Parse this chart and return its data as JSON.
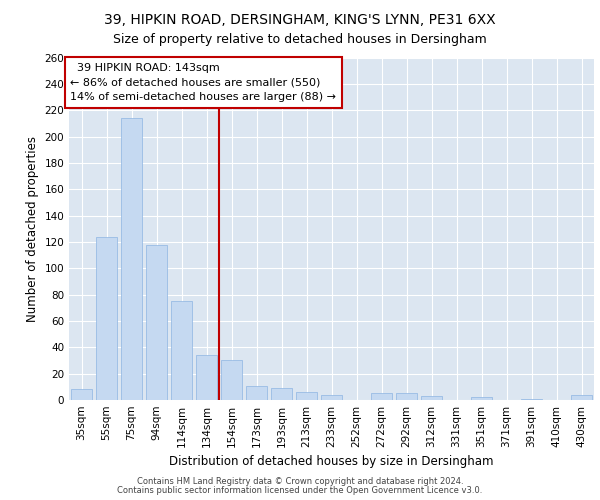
{
  "title_line1": "39, HIPKIN ROAD, DERSINGHAM, KING'S LYNN, PE31 6XX",
  "title_line2": "Size of property relative to detached houses in Dersingham",
  "xlabel": "Distribution of detached houses by size in Dersingham",
  "ylabel": "Number of detached properties",
  "footer_line1": "Contains HM Land Registry data © Crown copyright and database right 2024.",
  "footer_line2": "Contains public sector information licensed under the Open Government Licence v3.0.",
  "categories": [
    "35sqm",
    "55sqm",
    "75sqm",
    "94sqm",
    "114sqm",
    "134sqm",
    "154sqm",
    "173sqm",
    "193sqm",
    "213sqm",
    "233sqm",
    "252sqm",
    "272sqm",
    "292sqm",
    "312sqm",
    "331sqm",
    "351sqm",
    "371sqm",
    "391sqm",
    "410sqm",
    "430sqm"
  ],
  "values": [
    8,
    124,
    214,
    118,
    75,
    34,
    30,
    11,
    9,
    6,
    4,
    0,
    5,
    5,
    3,
    0,
    2,
    0,
    1,
    0,
    4
  ],
  "bar_color": "#c5d9f1",
  "bar_edge_color": "#8db4e2",
  "highlight_line_color": "#c00000",
  "annotation_text": "  39 HIPKIN ROAD: 143sqm\n← 86% of detached houses are smaller (550)\n14% of semi-detached houses are larger (88) →",
  "annotation_box_color": "#ffffff",
  "annotation_box_edge_color": "#c00000",
  "ylim": [
    0,
    260
  ],
  "yticks": [
    0,
    20,
    40,
    60,
    80,
    100,
    120,
    140,
    160,
    180,
    200,
    220,
    240,
    260
  ],
  "plot_bg_color": "#dce6f1",
  "fig_bg_color": "#ffffff",
  "grid_color": "#ffffff",
  "title_fontsize": 10,
  "subtitle_fontsize": 9,
  "axis_label_fontsize": 8.5,
  "tick_fontsize": 7.5,
  "annotation_fontsize": 8,
  "footer_fontsize": 6
}
